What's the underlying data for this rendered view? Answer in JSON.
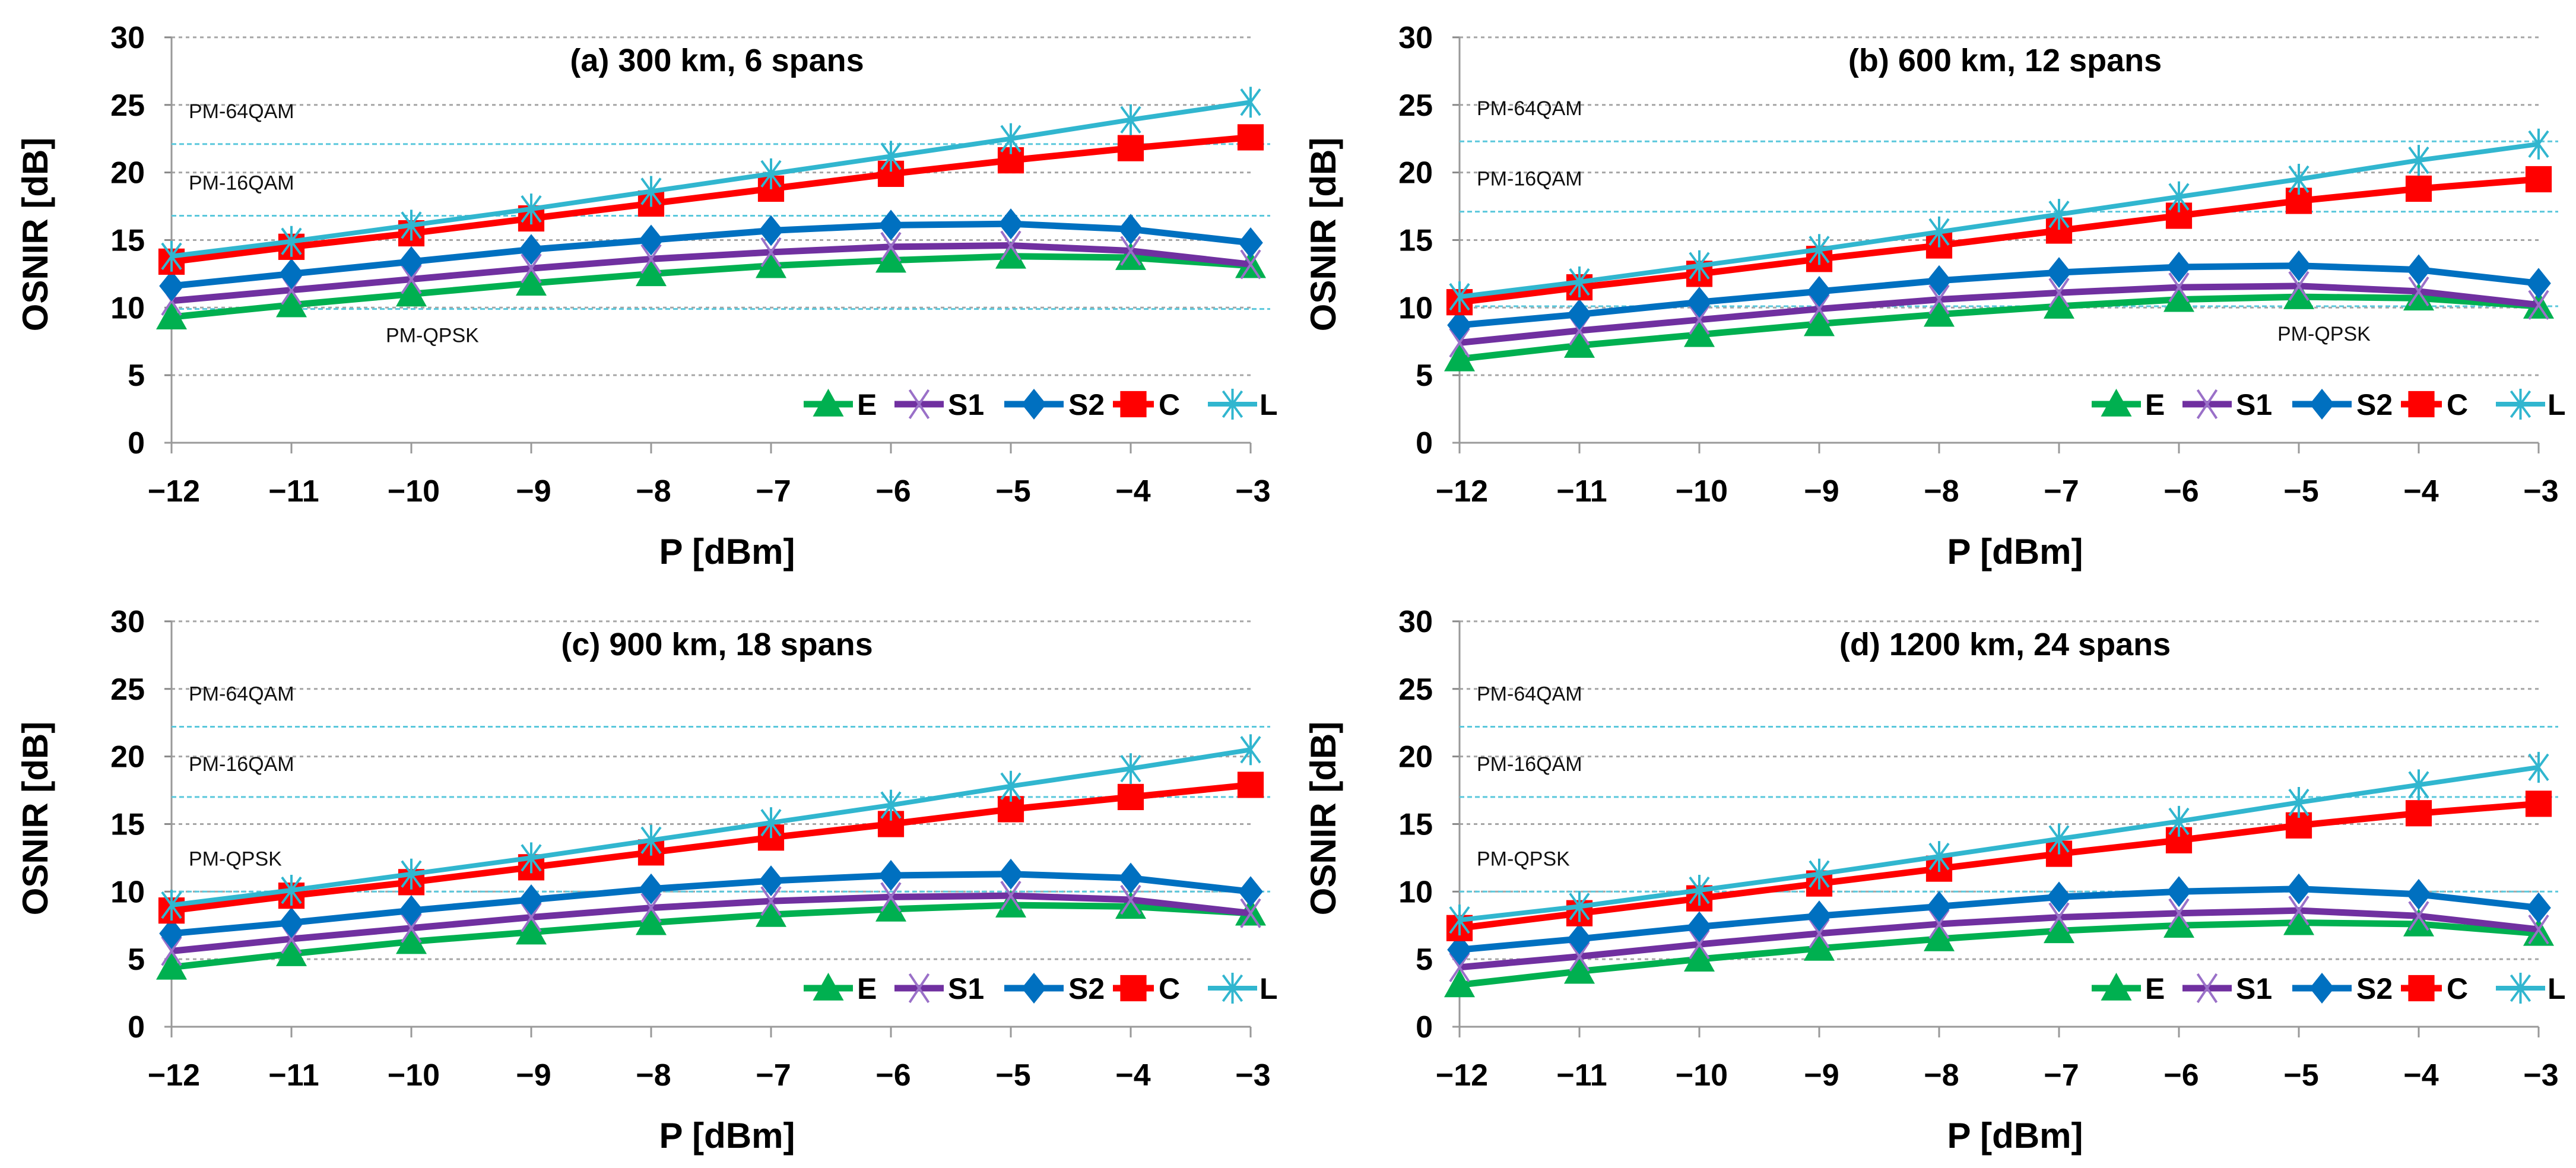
{
  "chart_data": [
    {
      "type": "line",
      "title": "(a) 300 km, 6 spans",
      "xlabel": "P [dBm]",
      "ylabel": "OSNIR [dB]",
      "x": [
        -12,
        -11,
        -10,
        -9,
        -8,
        -7,
        -6,
        -5,
        -4,
        -3
      ],
      "xlim": [
        -12,
        -3
      ],
      "ylim": [
        0,
        30
      ],
      "yticks": [
        0,
        5,
        10,
        15,
        20,
        25,
        30
      ],
      "grid": true,
      "legend": "bottom-right",
      "series": [
        {
          "name": "E",
          "values": [
            9.3,
            10.2,
            11.0,
            11.8,
            12.5,
            13.1,
            13.5,
            13.8,
            13.7,
            13.1
          ]
        },
        {
          "name": "S1",
          "values": [
            10.5,
            11.3,
            12.1,
            12.9,
            13.6,
            14.1,
            14.5,
            14.6,
            14.2,
            13.2
          ]
        },
        {
          "name": "S2",
          "values": [
            11.6,
            12.5,
            13.4,
            14.3,
            15.0,
            15.7,
            16.1,
            16.2,
            15.8,
            14.8
          ]
        },
        {
          "name": "C",
          "values": [
            13.4,
            14.5,
            15.5,
            16.6,
            17.7,
            18.8,
            19.9,
            20.9,
            21.8,
            22.6
          ]
        },
        {
          "name": "L",
          "values": [
            13.8,
            14.9,
            16.1,
            17.3,
            18.6,
            19.9,
            21.2,
            22.5,
            23.9,
            25.2
          ]
        }
      ],
      "thresholds": [
        {
          "label": "PM-64QAM",
          "value": 22.1,
          "label_placement": "left-above"
        },
        {
          "label": "PM-16QAM",
          "value": 16.8,
          "label_placement": "left-above"
        },
        {
          "label": "PM-QPSK",
          "value": 9.9,
          "label_placement": "middle-below"
        }
      ]
    },
    {
      "type": "line",
      "title": "(b) 600 km, 12 spans",
      "xlabel": "P [dBm]",
      "ylabel": "OSNIR [dB]",
      "x": [
        -12,
        -11,
        -10,
        -9,
        -8,
        -7,
        -6,
        -5,
        -4,
        -3
      ],
      "xlim": [
        -12,
        -3
      ],
      "ylim": [
        0,
        30
      ],
      "yticks": [
        0,
        5,
        10,
        15,
        20,
        25,
        30
      ],
      "grid": true,
      "legend": "bottom-right",
      "series": [
        {
          "name": "E",
          "values": [
            6.2,
            7.2,
            8.0,
            8.8,
            9.5,
            10.1,
            10.6,
            10.8,
            10.7,
            10.1
          ]
        },
        {
          "name": "S1",
          "values": [
            7.4,
            8.3,
            9.1,
            9.9,
            10.6,
            11.1,
            11.5,
            11.6,
            11.2,
            10.2
          ]
        },
        {
          "name": "S2",
          "values": [
            8.7,
            9.5,
            10.4,
            11.2,
            12.0,
            12.6,
            13.0,
            13.1,
            12.8,
            11.8
          ]
        },
        {
          "name": "C",
          "values": [
            10.4,
            11.5,
            12.5,
            13.6,
            14.6,
            15.7,
            16.8,
            17.9,
            18.8,
            19.5
          ]
        },
        {
          "name": "L",
          "values": [
            10.8,
            11.9,
            13.1,
            14.3,
            15.6,
            16.9,
            18.2,
            19.5,
            20.9,
            22.1
          ]
        }
      ],
      "thresholds": [
        {
          "label": "PM-64QAM",
          "value": 22.3,
          "label_placement": "left-above"
        },
        {
          "label": "PM-16QAM",
          "value": 17.1,
          "label_placement": "left-above"
        },
        {
          "label": "PM-QPSK",
          "value": 10.1,
          "label_placement": "right-below"
        }
      ]
    },
    {
      "type": "line",
      "title": "(c) 900 km, 18 spans",
      "xlabel": "P [dBm]",
      "ylabel": "OSNIR [dB]",
      "x": [
        -12,
        -11,
        -10,
        -9,
        -8,
        -7,
        -6,
        -5,
        -4,
        -3
      ],
      "xlim": [
        -12,
        -3
      ],
      "ylim": [
        0,
        30
      ],
      "yticks": [
        0,
        5,
        10,
        15,
        20,
        25,
        30
      ],
      "grid": true,
      "legend": "bottom-right",
      "series": [
        {
          "name": "E",
          "values": [
            4.4,
            5.4,
            6.3,
            7.0,
            7.7,
            8.3,
            8.7,
            9.0,
            8.9,
            8.4
          ]
        },
        {
          "name": "S1",
          "values": [
            5.6,
            6.5,
            7.3,
            8.1,
            8.8,
            9.3,
            9.6,
            9.7,
            9.4,
            8.4
          ]
        },
        {
          "name": "S2",
          "values": [
            6.9,
            7.7,
            8.6,
            9.4,
            10.2,
            10.8,
            11.2,
            11.3,
            11.0,
            10.0
          ]
        },
        {
          "name": "C",
          "values": [
            8.6,
            9.7,
            10.7,
            11.8,
            12.9,
            14.0,
            15.0,
            16.1,
            17.0,
            17.9
          ]
        },
        {
          "name": "L",
          "values": [
            9.0,
            10.1,
            11.3,
            12.5,
            13.8,
            15.1,
            16.4,
            17.8,
            19.1,
            20.5
          ]
        }
      ],
      "thresholds": [
        {
          "label": "PM-64QAM",
          "value": 22.2,
          "label_placement": "left-above"
        },
        {
          "label": "PM-16QAM",
          "value": 17.0,
          "label_placement": "left-above"
        },
        {
          "label": "PM-QPSK",
          "value": 10.0,
          "label_placement": "left-above"
        }
      ]
    },
    {
      "type": "line",
      "title": "(d) 1200 km, 24 spans",
      "xlabel": "P [dBm]",
      "ylabel": "OSNIR [dB]",
      "x": [
        -12,
        -11,
        -10,
        -9,
        -8,
        -7,
        -6,
        -5,
        -4,
        -3
      ],
      "xlim": [
        -12,
        -3
      ],
      "ylim": [
        0,
        30
      ],
      "yticks": [
        0,
        5,
        10,
        15,
        20,
        25,
        30
      ],
      "grid": true,
      "legend": "bottom-right",
      "series": [
        {
          "name": "E",
          "values": [
            3.1,
            4.1,
            5.0,
            5.8,
            6.5,
            7.1,
            7.5,
            7.7,
            7.6,
            6.9
          ]
        },
        {
          "name": "S1",
          "values": [
            4.4,
            5.2,
            6.1,
            6.9,
            7.6,
            8.1,
            8.4,
            8.6,
            8.2,
            7.2
          ]
        },
        {
          "name": "S2",
          "values": [
            5.7,
            6.5,
            7.4,
            8.2,
            8.9,
            9.6,
            10.0,
            10.2,
            9.8,
            8.8
          ]
        },
        {
          "name": "C",
          "values": [
            7.3,
            8.4,
            9.5,
            10.6,
            11.7,
            12.8,
            13.8,
            14.9,
            15.8,
            16.5
          ]
        },
        {
          "name": "L",
          "values": [
            7.9,
            8.9,
            10.1,
            11.3,
            12.6,
            13.9,
            15.2,
            16.6,
            17.9,
            19.2
          ]
        }
      ],
      "thresholds": [
        {
          "label": "PM-64QAM",
          "value": 22.2,
          "label_placement": "left-above"
        },
        {
          "label": "PM-16QAM",
          "value": 17.0,
          "label_placement": "left-above"
        },
        {
          "label": "PM-QPSK",
          "value": 10.0,
          "label_placement": "left-above"
        }
      ]
    }
  ],
  "series_styles": {
    "E": {
      "color": "#00b050",
      "marker": "triangle"
    },
    "S1": {
      "color": "#7030a0",
      "marker": "x"
    },
    "S2": {
      "color": "#0070c0",
      "marker": "diamond"
    },
    "C": {
      "color": "#ff0000",
      "marker": "square"
    },
    "L": {
      "color": "#31b6cf",
      "marker": "star"
    }
  },
  "threshold_color": "#5bc8dc",
  "grid_color": "#a6a6a6"
}
